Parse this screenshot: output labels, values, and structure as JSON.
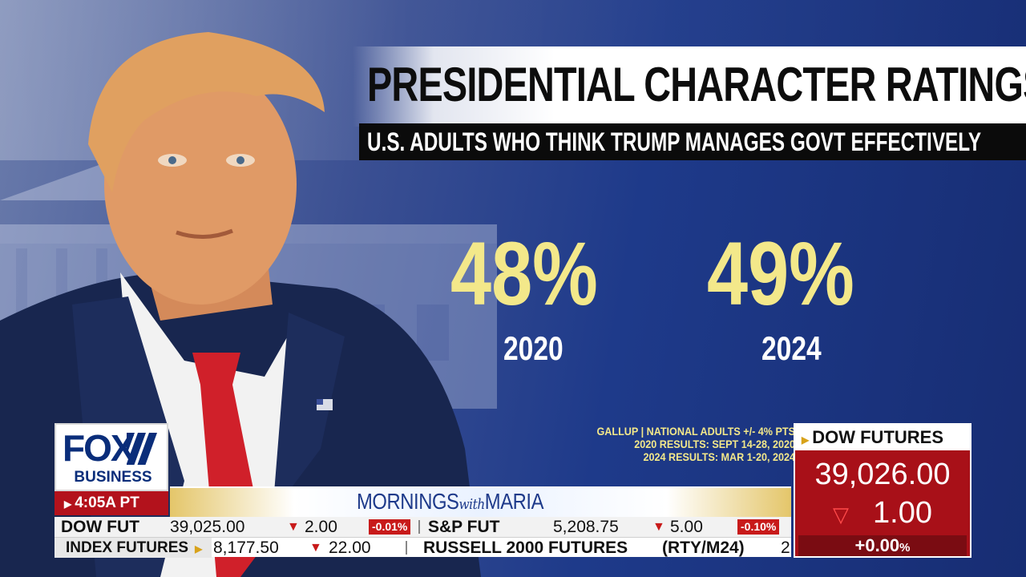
{
  "graphic": {
    "title": "PRESIDENTIAL CHARACTER RATINGS",
    "subtitle": "U.S. ADULTS WHO THINK TRUMP MANAGES GOVT EFFECTIVELY",
    "stats": [
      {
        "value": "48%",
        "year": "2020"
      },
      {
        "value": "49%",
        "year": "2024"
      }
    ],
    "source_lines": [
      "GALLUP | NATIONAL ADULTS +/- 4% PTS",
      "2020 RESULTS: SEPT 14-28, 2020",
      "2024 RESULTS: MAR 1-20, 2024"
    ],
    "colors": {
      "accent_yellow": "#f3e88a",
      "bg_blue": "#1e3a8a"
    }
  },
  "chart_data": {
    "type": "table",
    "categories": [
      "2020",
      "2024"
    ],
    "values": [
      48,
      49
    ],
    "title": "PRESIDENTIAL CHARACTER RATINGS"
  },
  "brand": {
    "logo_top": "FOX",
    "logo_bottom": "BUSINESS",
    "time": "4:05A PT",
    "show_name_1": "MORNINGS",
    "show_name_with": "with",
    "show_name_2": "MARIA"
  },
  "ticker": {
    "row1": {
      "dow_label": "DOW FUT",
      "dow_value": "39,025.00",
      "dow_change": "2.00",
      "dow_pct": "-0.01%",
      "sp_label": "S&P FUT",
      "sp_value": "5,208.75",
      "sp_change": "5.00",
      "sp_pct": "-0.10%"
    },
    "row2": {
      "label": "INDEX FUTURES",
      "value1": "8,177.50",
      "change1": "22.00",
      "name2": "RUSSELL 2000 FUTURES",
      "symbol2": "(RTY/M24)",
      "value2_partial": "2"
    }
  },
  "dow_box": {
    "title": "DOW FUTURES",
    "value": "39,026.00",
    "change": "1.00",
    "pct": "+0.00",
    "pct_unit": "%",
    "down_color": "#c81a1a"
  }
}
